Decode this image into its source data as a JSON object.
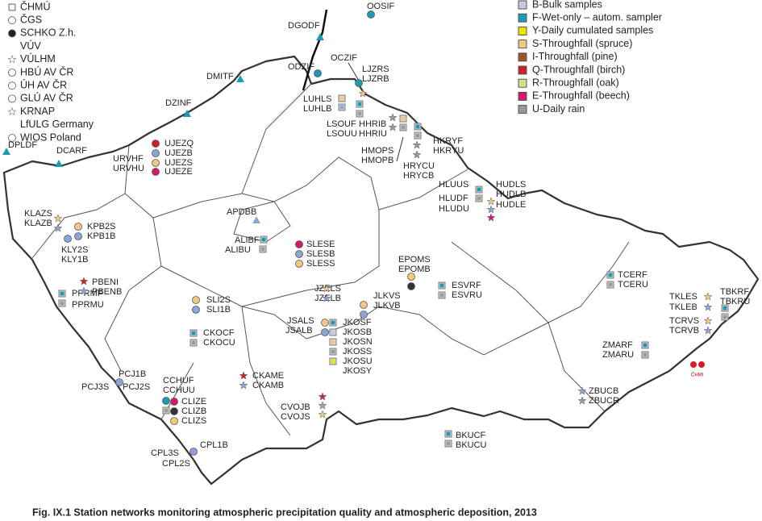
{
  "legend_operators": [
    "ČHMÚ",
    "ČGS",
    "SCHKO Z.h.",
    "VÚV",
    "VÚLHM",
    "HBÚ AV ČR",
    "ÚH AV ČR",
    "GLÚ AV ČR",
    "KRNAP",
    "LfULG Germany",
    "WIOS Poland"
  ],
  "legend_samples": [
    "B-Bulk samples",
    "F-Wet-only – autom. sampler",
    "Y-Daily cumulated samples",
    "S-Throughfall (spruce)",
    "I-Throughfall (pine)",
    "Q-Throughfall (birch)",
    "R-Throughfall (oak)",
    "E-Throughfall (beech)",
    "U-Daily rain"
  ],
  "stations": [
    "OOSIF",
    "DGODF",
    "ODZIF",
    "OCZIF",
    "LJZRS",
    "LJZRB",
    "DMITF",
    "LUHLS",
    "LUHLB",
    "DZINF",
    "LSOUF",
    "LSOUU",
    "HHRIB",
    "HHRIU",
    "HKRYF",
    "HKRYU",
    "HMOPS",
    "HMOPB",
    "HRYCU",
    "HRYCB",
    "DPLDF",
    "DCARF",
    "UJEZQ",
    "UJEZB",
    "UJEZS",
    "UJEZE",
    "URVHF",
    "URVHU",
    "HLUUS",
    "HUDLS",
    "HUDLB",
    "HUDLE",
    "HLUDF",
    "HLUDU",
    "APDBB",
    "KLAZS",
    "KLAZB",
    "KPB2S",
    "KPB1B",
    "KLY2S",
    "KLY1B",
    "ALIBF",
    "ALIBU",
    "SLESE",
    "SLESB",
    "SLESS",
    "EPOMS",
    "EPOMB",
    "PBENI",
    "PBENB",
    "PPRMF",
    "PPRMU",
    "ESVRF",
    "ESVRU",
    "TCERF",
    "TCERU",
    "JZELS",
    "JZELB",
    "JLKVS",
    "JLKVB",
    "SLI2S",
    "SLI1B",
    "TKLES",
    "TKLEB",
    "TBKRF",
    "TBKRU",
    "TCRVS",
    "TCRVB",
    "JSALS",
    "JSALB",
    "JKOSF",
    "JKOSB",
    "JKOSN",
    "JKOSS",
    "JKOSU",
    "JKOSY",
    "CKOCF",
    "CKOCU",
    "ZMARF",
    "ZMARU",
    "CKAME",
    "CKAMB",
    "PCJ1B",
    "PCJ3S",
    "PCJ2S",
    "CCHUF",
    "CCHUU",
    "CLIZE",
    "CLIZB",
    "CLIZS",
    "ZBUCB",
    "ZBUCR",
    "CVOJB",
    "CVOJS",
    "BKUCF",
    "BKUCU",
    "CPL1B",
    "CPL3S",
    "CPL2S"
  ],
  "logo_text": "ČHMI",
  "caption": "Fig. IX.1  Station networks monitoring atmospheric precipitation quality and atmospheric deposition, 2013"
}
